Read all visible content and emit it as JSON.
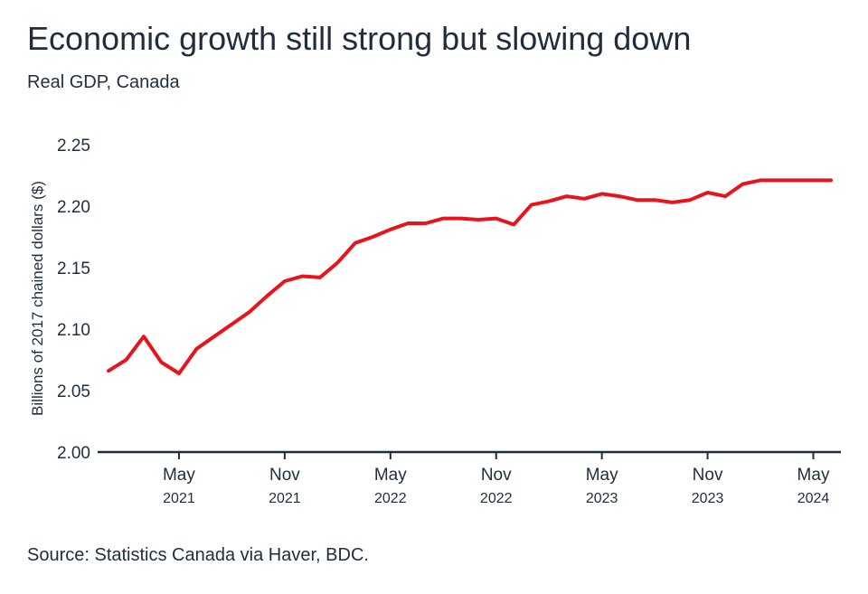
{
  "chart_data": {
    "type": "line",
    "title": "Economic growth still strong but slowing down",
    "subtitle": "Real GDP, Canada",
    "ylabel": "Billions of 2017 chained dollars ($)",
    "ylim": [
      2.0,
      2.25
    ],
    "yticks": [
      "2.00",
      "2.05",
      "2.10",
      "2.15",
      "2.20",
      "2.25"
    ],
    "xticks": [
      {
        "month": "May",
        "year": "2021",
        "date": "2021-05"
      },
      {
        "month": "Nov",
        "year": "2021",
        "date": "2021-11"
      },
      {
        "month": "May",
        "year": "2022",
        "date": "2022-05"
      },
      {
        "month": "Nov",
        "year": "2022",
        "date": "2022-11"
      },
      {
        "month": "May",
        "year": "2023",
        "date": "2023-05"
      },
      {
        "month": "Nov",
        "year": "2023",
        "date": "2023-11"
      },
      {
        "month": "May",
        "year": "2024",
        "date": "2024-05"
      }
    ],
    "grid": false,
    "line_color": "#e8141b",
    "series": [
      {
        "x": [
          "2021-01",
          "2021-02",
          "2021-03",
          "2021-04",
          "2021-05",
          "2021-06",
          "2021-07",
          "2021-08",
          "2021-09",
          "2021-10",
          "2021-11",
          "2021-12",
          "2022-01",
          "2022-02",
          "2022-03",
          "2022-04",
          "2022-05",
          "2022-06",
          "2022-07",
          "2022-08",
          "2022-09",
          "2022-10",
          "2022-11",
          "2022-12",
          "2023-01",
          "2023-02",
          "2023-03",
          "2023-04",
          "2023-05",
          "2023-06",
          "2023-07",
          "2023-08",
          "2023-09",
          "2023-10",
          "2023-11",
          "2023-12",
          "2024-01",
          "2024-02",
          "2024-03",
          "2024-04",
          "2024-05",
          "2024-06"
        ],
        "values": [
          2.066,
          2.075,
          2.094,
          2.073,
          2.064,
          2.084,
          2.094,
          2.104,
          2.114,
          2.127,
          2.139,
          2.143,
          2.142,
          2.154,
          2.17,
          2.175,
          2.181,
          2.186,
          2.186,
          2.19,
          2.19,
          2.189,
          2.19,
          2.185,
          2.201,
          2.204,
          2.208,
          2.206,
          2.21,
          2.208,
          2.205,
          2.205,
          2.203,
          2.205,
          2.211,
          2.208,
          2.218,
          2.221,
          2.221,
          2.221,
          2.221,
          2.221
        ]
      }
    ]
  },
  "source": "Source: Statistics Canada via Haver, BDC."
}
